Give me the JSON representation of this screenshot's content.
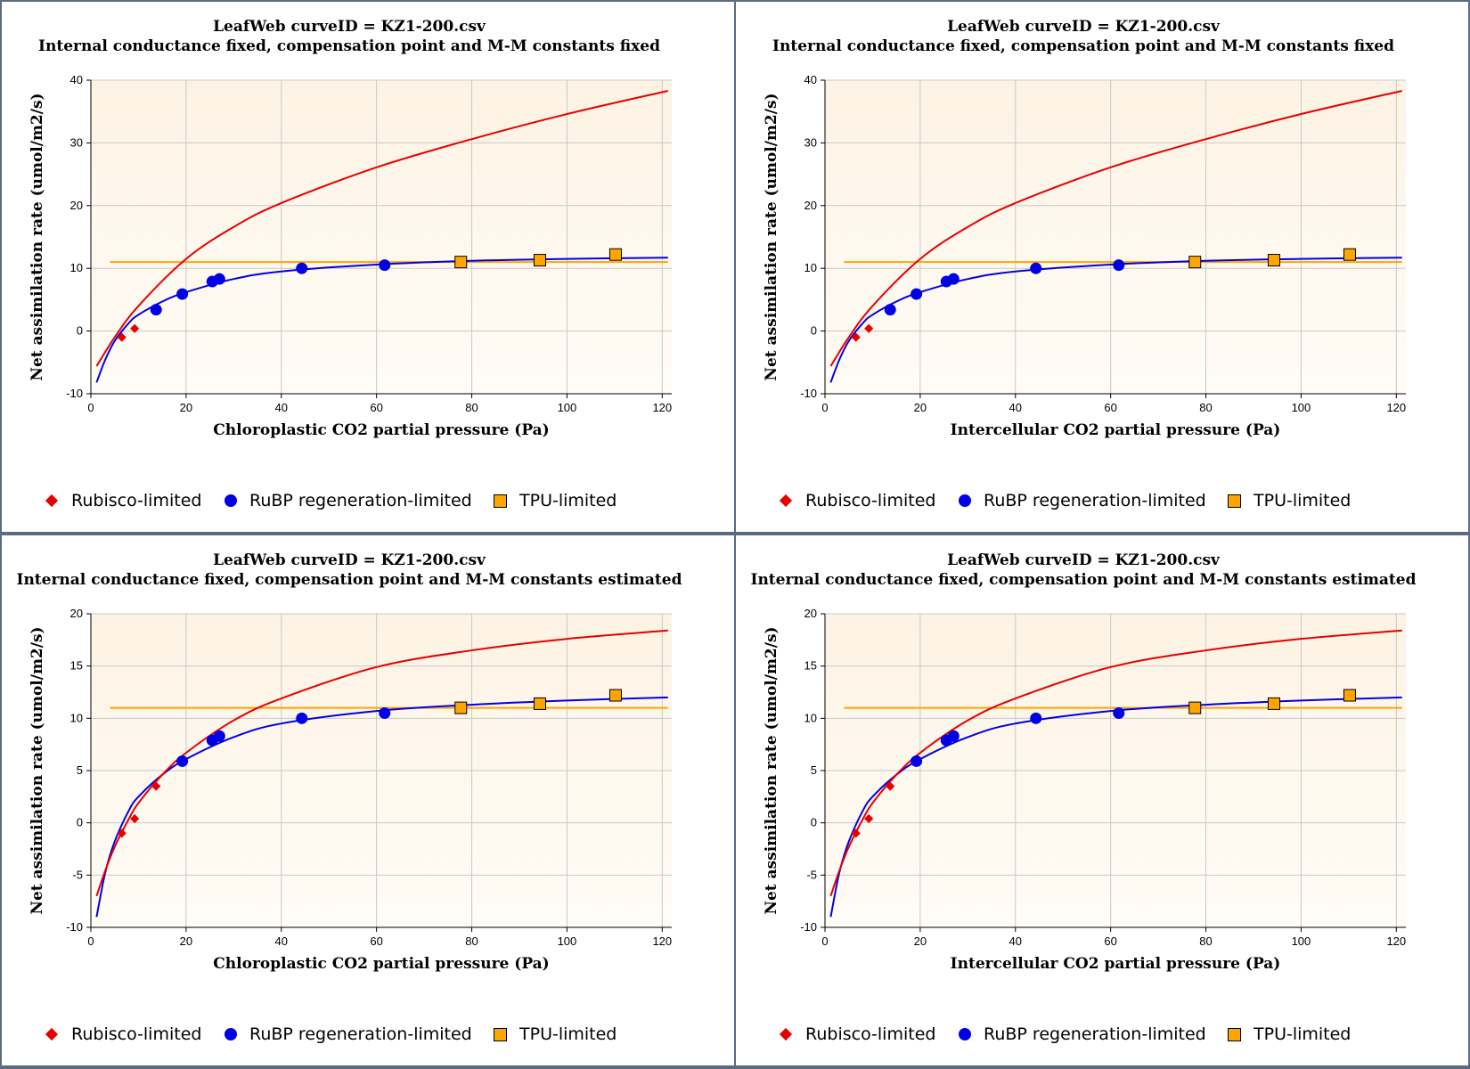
{
  "legend": {
    "rubisco": "Rubisco-limited",
    "rubp": "RuBP regeneration-limited",
    "tpu": "TPU-limited"
  },
  "colors": {
    "rubisco": "#e60000",
    "rubp": "#0000e6",
    "tpu": "#ffa500",
    "plot_bg_top": "#fdf3e4",
    "plot_bg_bottom": "#fffcf6",
    "grid": "#c8c8c8"
  },
  "chart_data": [
    {
      "type": "scatter",
      "title": "LeafWeb curveID = KZ1-200.csv",
      "subtitle": "Internal conductance fixed, compensation point and M-M constants fixed",
      "xlabel": "Chloroplastic CO2 partial pressure (Pa)",
      "ylabel": "Net assimilation rate (umol/m2/s)",
      "xlim": [
        0,
        122
      ],
      "ylim": [
        -10,
        40
      ],
      "xticks": [
        0,
        20,
        40,
        60,
        80,
        100,
        120
      ],
      "yticks": [
        -10,
        0,
        10,
        20,
        30,
        40
      ],
      "grid": true,
      "legend_position": "bottom",
      "series": [
        {
          "name": "Rubisco-limited",
          "kind": "points",
          "marker": "diamond",
          "x": [
            6.5,
            9.2
          ],
          "y": [
            -1.0,
            0.4
          ]
        },
        {
          "name": "RuBP regeneration-limited",
          "kind": "points",
          "marker": "circle",
          "x": [
            13.7,
            19.2,
            25.5,
            27.0,
            44.3,
            61.7
          ],
          "y": [
            3.4,
            5.9,
            7.9,
            8.3,
            10.0,
            10.5
          ]
        },
        {
          "name": "TPU-limited",
          "kind": "points",
          "marker": "square",
          "x": [
            77.7,
            94.3,
            110.2
          ],
          "y": [
            11.0,
            11.3,
            12.2
          ]
        },
        {
          "name": "Rubisco-limited",
          "kind": "curve",
          "x": [
            1.2,
            5,
            10,
            20,
            30,
            40,
            60,
            80,
            100,
            121.2
          ],
          "y": [
            -5.6,
            -1.0,
            4.0,
            11.5,
            16.6,
            20.4,
            26.1,
            30.6,
            34.6,
            38.3
          ]
        },
        {
          "name": "RuBP regeneration-limited",
          "kind": "curve",
          "x": [
            1.2,
            3,
            5,
            8,
            10,
            15,
            20,
            30,
            40,
            60,
            80,
            100,
            121.2
          ],
          "y": [
            -8.2,
            -4.6,
            -1.6,
            1.3,
            2.6,
            4.7,
            6.2,
            8.3,
            9.5,
            10.6,
            11.2,
            11.5,
            11.7
          ]
        },
        {
          "name": "TPU-limited",
          "kind": "curve",
          "x": [
            4,
            121.2
          ],
          "y": [
            11.0,
            11.0
          ]
        }
      ]
    },
    {
      "type": "scatter",
      "title": "LeafWeb curveID = KZ1-200.csv",
      "subtitle": "Internal conductance fixed, compensation point and M-M constants fixed",
      "xlabel": "Intercellular CO2 partial pressure (Pa)",
      "ylabel": "Net assimilation rate (umol/m2/s)",
      "xlim": [
        0,
        122
      ],
      "ylim": [
        -10,
        40
      ],
      "xticks": [
        0,
        20,
        40,
        60,
        80,
        100,
        120
      ],
      "yticks": [
        -10,
        0,
        10,
        20,
        30,
        40
      ],
      "grid": true,
      "legend_position": "bottom",
      "series": [
        {
          "name": "Rubisco-limited",
          "kind": "points",
          "marker": "diamond",
          "x": [
            6.5,
            9.2
          ],
          "y": [
            -1.0,
            0.4
          ]
        },
        {
          "name": "RuBP regeneration-limited",
          "kind": "points",
          "marker": "circle",
          "x": [
            13.7,
            19.2,
            25.5,
            27.0,
            44.3,
            61.7
          ],
          "y": [
            3.4,
            5.9,
            7.9,
            8.3,
            10.0,
            10.5
          ]
        },
        {
          "name": "TPU-limited",
          "kind": "points",
          "marker": "square",
          "x": [
            77.7,
            94.3,
            110.2
          ],
          "y": [
            11.0,
            11.3,
            12.2
          ]
        },
        {
          "name": "Rubisco-limited",
          "kind": "curve",
          "x": [
            1.2,
            5,
            10,
            20,
            30,
            40,
            60,
            80,
            100,
            121.2
          ],
          "y": [
            -5.6,
            -1.0,
            4.0,
            11.5,
            16.6,
            20.4,
            26.1,
            30.6,
            34.6,
            38.3
          ]
        },
        {
          "name": "RuBP regeneration-limited",
          "kind": "curve",
          "x": [
            1.2,
            3,
            5,
            8,
            10,
            15,
            20,
            30,
            40,
            60,
            80,
            100,
            121.2
          ],
          "y": [
            -8.2,
            -4.6,
            -1.6,
            1.3,
            2.6,
            4.7,
            6.2,
            8.3,
            9.5,
            10.6,
            11.2,
            11.5,
            11.7
          ]
        },
        {
          "name": "TPU-limited",
          "kind": "curve",
          "x": [
            4,
            121.2
          ],
          "y": [
            11.0,
            11.0
          ]
        }
      ]
    },
    {
      "type": "scatter",
      "title": "LeafWeb curveID = KZ1-200.csv",
      "subtitle": "Internal conductance fixed, compensation point and M-M constants estimated",
      "xlabel": "Chloroplastic CO2 partial pressure (Pa)",
      "ylabel": "Net assimilation rate (umol/m2/s)",
      "xlim": [
        0,
        122
      ],
      "ylim": [
        -10,
        20
      ],
      "xticks": [
        0,
        20,
        40,
        60,
        80,
        100,
        120
      ],
      "yticks": [
        -10,
        -5,
        0,
        5,
        10,
        15,
        20
      ],
      "grid": true,
      "legend_position": "bottom",
      "series": [
        {
          "name": "Rubisco-limited",
          "kind": "points",
          "marker": "diamond",
          "x": [
            6.5,
            9.2,
            13.7
          ],
          "y": [
            -1.0,
            0.4,
            3.5
          ]
        },
        {
          "name": "RuBP regeneration-limited",
          "kind": "points",
          "marker": "circle",
          "x": [
            19.2,
            25.5,
            27.0,
            44.3,
            61.7
          ],
          "y": [
            5.9,
            7.9,
            8.3,
            10.0,
            10.5
          ]
        },
        {
          "name": "TPU-limited",
          "kind": "points",
          "marker": "square",
          "x": [
            77.7,
            94.3,
            110.2
          ],
          "y": [
            11.0,
            11.4,
            12.2
          ]
        },
        {
          "name": "Rubisco-limited",
          "kind": "curve",
          "x": [
            1.2,
            3,
            5,
            8,
            10,
            15,
            20,
            30,
            40,
            60,
            80,
            100,
            121.2
          ],
          "y": [
            -7.0,
            -4.6,
            -2.3,
            0.4,
            1.9,
            4.6,
            6.7,
            9.8,
            11.9,
            14.9,
            16.5,
            17.6,
            18.4
          ]
        },
        {
          "name": "RuBP regeneration-limited",
          "kind": "curve",
          "x": [
            1.2,
            3,
            5,
            8,
            10,
            15,
            20,
            30,
            40,
            60,
            80,
            100,
            121.2
          ],
          "y": [
            -9.0,
            -4.8,
            -1.8,
            1.2,
            2.5,
            4.6,
            6.1,
            8.2,
            9.5,
            10.7,
            11.3,
            11.7,
            12.0
          ]
        },
        {
          "name": "TPU-limited",
          "kind": "curve",
          "x": [
            4,
            121.2
          ],
          "y": [
            11.0,
            11.0
          ]
        }
      ]
    },
    {
      "type": "scatter",
      "title": "LeafWeb curveID = KZ1-200.csv",
      "subtitle": "Internal conductance fixed, compensation point and M-M constants estimated",
      "xlabel": "Intercellular CO2 partial pressure (Pa)",
      "ylabel": "Net assimilation rate (umol/m2/s)",
      "xlim": [
        0,
        122
      ],
      "ylim": [
        -10,
        20
      ],
      "xticks": [
        0,
        20,
        40,
        60,
        80,
        100,
        120
      ],
      "yticks": [
        -10,
        -5,
        0,
        5,
        10,
        15,
        20
      ],
      "grid": true,
      "legend_position": "bottom",
      "series": [
        {
          "name": "Rubisco-limited",
          "kind": "points",
          "marker": "diamond",
          "x": [
            6.5,
            9.2,
            13.7
          ],
          "y": [
            -1.0,
            0.4,
            3.5
          ]
        },
        {
          "name": "RuBP regeneration-limited",
          "kind": "points",
          "marker": "circle",
          "x": [
            19.2,
            25.5,
            27.0,
            44.3,
            61.7
          ],
          "y": [
            5.9,
            7.9,
            8.3,
            10.0,
            10.5
          ]
        },
        {
          "name": "TPU-limited",
          "kind": "points",
          "marker": "square",
          "x": [
            77.7,
            94.3,
            110.2
          ],
          "y": [
            11.0,
            11.4,
            12.2
          ]
        },
        {
          "name": "Rubisco-limited",
          "kind": "curve",
          "x": [
            1.2,
            3,
            5,
            8,
            10,
            15,
            20,
            30,
            40,
            60,
            80,
            100,
            121.2
          ],
          "y": [
            -7.0,
            -4.6,
            -2.3,
            0.4,
            1.9,
            4.6,
            6.7,
            9.8,
            11.9,
            14.9,
            16.5,
            17.6,
            18.4
          ]
        },
        {
          "name": "RuBP regeneration-limited",
          "kind": "curve",
          "x": [
            1.2,
            3,
            5,
            8,
            10,
            15,
            20,
            30,
            40,
            60,
            80,
            100,
            121.2
          ],
          "y": [
            -9.0,
            -4.8,
            -1.8,
            1.2,
            2.5,
            4.6,
            6.1,
            8.2,
            9.5,
            10.7,
            11.3,
            11.7,
            12.0
          ]
        },
        {
          "name": "TPU-limited",
          "kind": "curve",
          "x": [
            4,
            121.2
          ],
          "y": [
            11.0,
            11.0
          ]
        }
      ]
    }
  ]
}
